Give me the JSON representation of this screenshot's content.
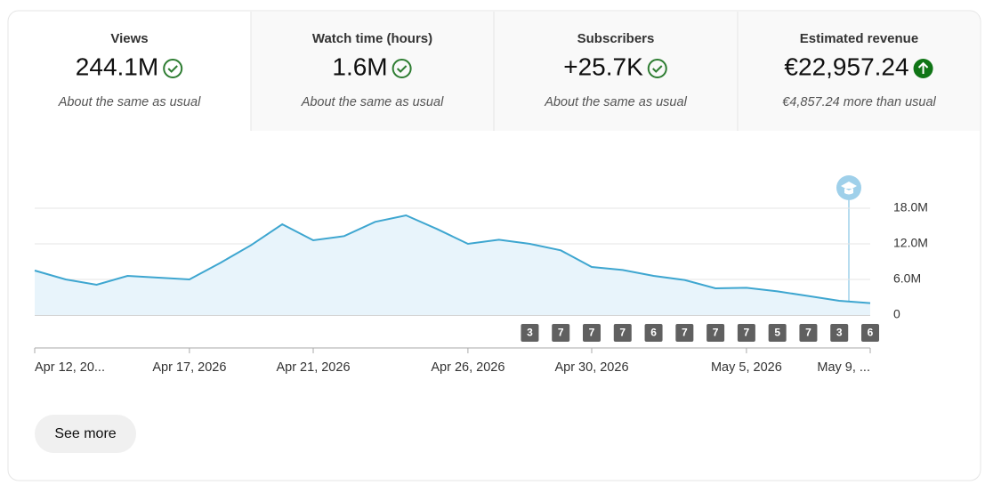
{
  "cards": [
    {
      "title": "Views",
      "value": "244.1M",
      "note": "About the same as usual"
    },
    {
      "title": "Watch time (hours)",
      "value": "1.6M",
      "note": "About the same as usual"
    },
    {
      "title": "Subscribers",
      "value": "+25.7K",
      "note": "About the same as usual"
    },
    {
      "title": "Estimated revenue",
      "value": "€22,957.24",
      "note": "€4,857.24 more than usual"
    }
  ],
  "chart_data": {
    "type": "area",
    "color": "#3ea6d0",
    "grid": true,
    "x": [
      "2026-04-12",
      "2026-04-13",
      "2026-04-14",
      "2026-04-15",
      "2026-04-16",
      "2026-04-17",
      "2026-04-18",
      "2026-04-19",
      "2026-04-20",
      "2026-04-21",
      "2026-04-22",
      "2026-04-23",
      "2026-04-24",
      "2026-04-25",
      "2026-04-26",
      "2026-04-27",
      "2026-04-28",
      "2026-04-29",
      "2026-04-30",
      "2026-05-01",
      "2026-05-02",
      "2026-05-03",
      "2026-05-04",
      "2026-05-05",
      "2026-05-06",
      "2026-05-07",
      "2026-05-08",
      "2026-05-09"
    ],
    "values": [
      7.5,
      6.0,
      5.1,
      6.6,
      6.3,
      6.0,
      8.8,
      11.8,
      15.3,
      12.6,
      13.3,
      15.7,
      16.8,
      14.5,
      12.0,
      12.7,
      12.0,
      10.9,
      8.1,
      7.6,
      6.6,
      5.9,
      4.5,
      4.6,
      4.0,
      3.2,
      2.4,
      2.0
    ],
    "ylim": [
      0,
      18
    ],
    "yticks": [
      0,
      {
        "value": 6,
        "label": "6.0M"
      },
      {
        "value": 12,
        "label": "12.0M"
      },
      {
        "value": 18,
        "label": "18.0M"
      }
    ],
    "xticks": [
      {
        "value": "2026-04-12",
        "label": "Apr 12, 20..."
      },
      {
        "value": "2026-04-17",
        "label": "Apr 17, 2026"
      },
      {
        "value": "2026-04-21",
        "label": "Apr 21, 2026"
      },
      {
        "value": "2026-04-26",
        "label": "Apr 26, 2026"
      },
      {
        "value": "2026-04-30",
        "label": "Apr 30, 2026"
      },
      {
        "value": "2026-05-05",
        "label": "May 5, 2026"
      },
      {
        "value": "2026-05-09",
        "label": "May 9, ..."
      }
    ],
    "annotations": [
      {
        "x": "2026-04-28",
        "label": 3
      },
      {
        "x": "2026-04-29",
        "label": 7
      },
      {
        "x": "2026-04-30",
        "label": 7
      },
      {
        "x": "2026-05-01",
        "label": 7
      },
      {
        "x": "2026-05-02",
        "label": 6
      },
      {
        "x": "2026-05-03",
        "label": 7
      },
      {
        "x": "2026-05-04",
        "label": 7
      },
      {
        "x": "2026-05-05",
        "label": 7
      },
      {
        "x": "2026-05-06",
        "label": 5
      },
      {
        "x": "2026-05-07",
        "label": 7
      },
      {
        "x": "2026-05-08",
        "label": 3
      },
      {
        "x": "2026-05-09",
        "label": 6
      }
    ]
  },
  "button": "See more"
}
